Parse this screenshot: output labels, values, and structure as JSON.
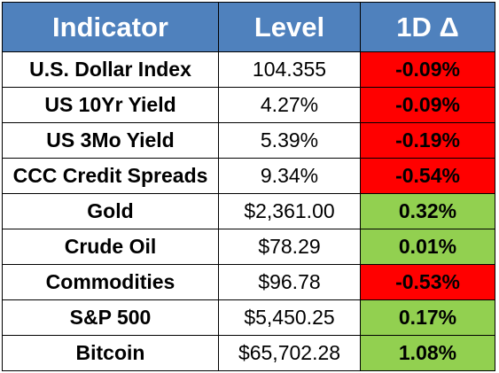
{
  "chart_data": {
    "type": "table",
    "columns": [
      "Indicator",
      "Level",
      "1D Δ"
    ],
    "rows": [
      {
        "indicator": "U.S. Dollar Index",
        "level": "104.355",
        "change": "-0.09%",
        "change_value": -0.09
      },
      {
        "indicator": "US 10Yr Yield",
        "level": "4.27%",
        "change": "-0.09%",
        "change_value": -0.09
      },
      {
        "indicator": "US 3Mo Yield",
        "level": "5.39%",
        "change": "-0.19%",
        "change_value": -0.19
      },
      {
        "indicator": "CCC Credit Spreads",
        "level": "9.34%",
        "change": "-0.54%",
        "change_value": -0.54
      },
      {
        "indicator": "Gold",
        "level": "$2,361.00",
        "change": "0.32%",
        "change_value": 0.32
      },
      {
        "indicator": "Crude Oil",
        "level": "$78.29",
        "change": "0.01%",
        "change_value": 0.01
      },
      {
        "indicator": "Commodities",
        "level": "$96.78",
        "change": "-0.53%",
        "change_value": -0.53
      },
      {
        "indicator": "S&P 500",
        "level": "$5,450.25",
        "change": "0.17%",
        "change_value": 0.17
      },
      {
        "indicator": "Bitcoin",
        "level": "$65,702.28",
        "change": "1.08%",
        "change_value": 1.08
      }
    ]
  },
  "colors": {
    "header_background": "#4f81bd",
    "header_text": "#ffffff",
    "negative_change": "#ff0000",
    "positive_change": "#92d050",
    "border": "#000000"
  }
}
